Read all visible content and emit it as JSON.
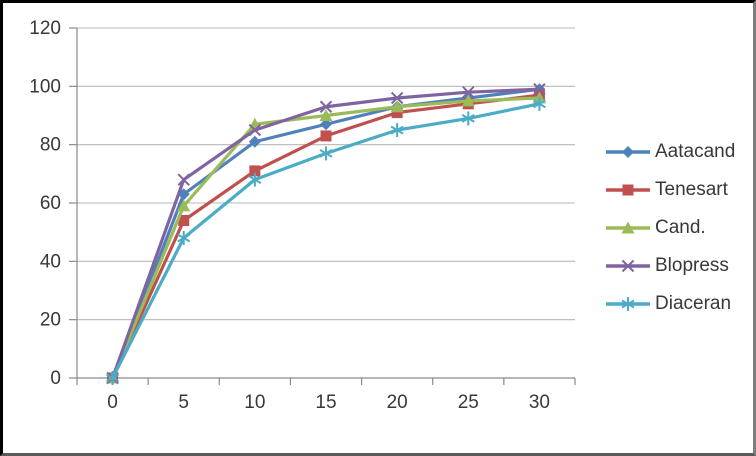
{
  "frame": {
    "background": "#ffffff",
    "border_color": "#000000"
  },
  "style": {
    "gridline_color": "#b7b7b7",
    "axis_color": "#8a8a8a",
    "text_color": "#383838",
    "line_width": 3.2
  },
  "chart_data": {
    "type": "line",
    "x": [
      0,
      5,
      10,
      15,
      20,
      25,
      30
    ],
    "categories": [
      "0",
      "5",
      "10",
      "15",
      "20",
      "25",
      "30"
    ],
    "series": [
      {
        "name": "Aatacand",
        "marker": "diamond",
        "color": "#4F81BD",
        "values": [
          0,
          63,
          81,
          87,
          93,
          96,
          99
        ]
      },
      {
        "name": "Tenesart",
        "marker": "square",
        "color": "#C0504D",
        "values": [
          0,
          54,
          71,
          83,
          91,
          94,
          97
        ]
      },
      {
        "name": "Cand.",
        "marker": "triangle",
        "color": "#9BBB59",
        "values": [
          0,
          59,
          87,
          90,
          93,
          95,
          96
        ]
      },
      {
        "name": "Blopress",
        "marker": "x",
        "color": "#8064A2",
        "values": [
          0,
          68,
          85,
          93,
          96,
          98,
          99
        ]
      },
      {
        "name": "Diaceran",
        "marker": "asterisk",
        "color": "#4BACC6",
        "values": [
          0,
          48,
          68,
          77,
          85,
          89,
          94
        ]
      }
    ],
    "y_axis": {
      "min": 0,
      "max": 120,
      "step": 20,
      "tick_labels": [
        "0",
        "20",
        "40",
        "60",
        "80",
        "100",
        "120"
      ]
    },
    "x_axis": {
      "tick_labels": [
        "0",
        "5",
        "10",
        "15",
        "20",
        "25",
        "30"
      ]
    },
    "grid": true,
    "legend_position": "right"
  }
}
